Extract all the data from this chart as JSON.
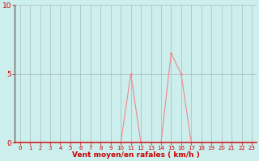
{
  "x": [
    0,
    1,
    2,
    3,
    4,
    5,
    6,
    7,
    8,
    9,
    10,
    11,
    12,
    13,
    14,
    15,
    16,
    17,
    18,
    19,
    20,
    21,
    22,
    23
  ],
  "y": [
    0,
    0,
    0,
    0,
    0,
    0,
    0,
    0,
    0,
    0,
    0,
    5,
    0,
    0,
    0,
    6.5,
    5,
    0,
    0,
    0,
    0,
    0,
    0,
    0
  ],
  "xlim_min": -0.5,
  "xlim_max": 23.5,
  "ylim_min": 0,
  "ylim_max": 10,
  "xticks": [
    0,
    1,
    2,
    3,
    4,
    5,
    6,
    7,
    8,
    9,
    10,
    11,
    12,
    13,
    14,
    15,
    16,
    17,
    18,
    19,
    20,
    21,
    22,
    23
  ],
  "yticks": [
    0,
    5,
    10
  ],
  "xlabel": "Vent moyen/en rafales ( km/h )",
  "line_color": "#f08888",
  "marker_color": "#f08888",
  "bg_color": "#cceeed",
  "grid_color": "#aabbbb",
  "left_spine_color": "#666666",
  "bottom_spine_color": "#cc2222",
  "label_color": "#cc0000",
  "tick_color": "#cc0000",
  "xlabel_fontsize": 6.5,
  "xtick_fontsize": 5.0,
  "ytick_fontsize": 6.5
}
